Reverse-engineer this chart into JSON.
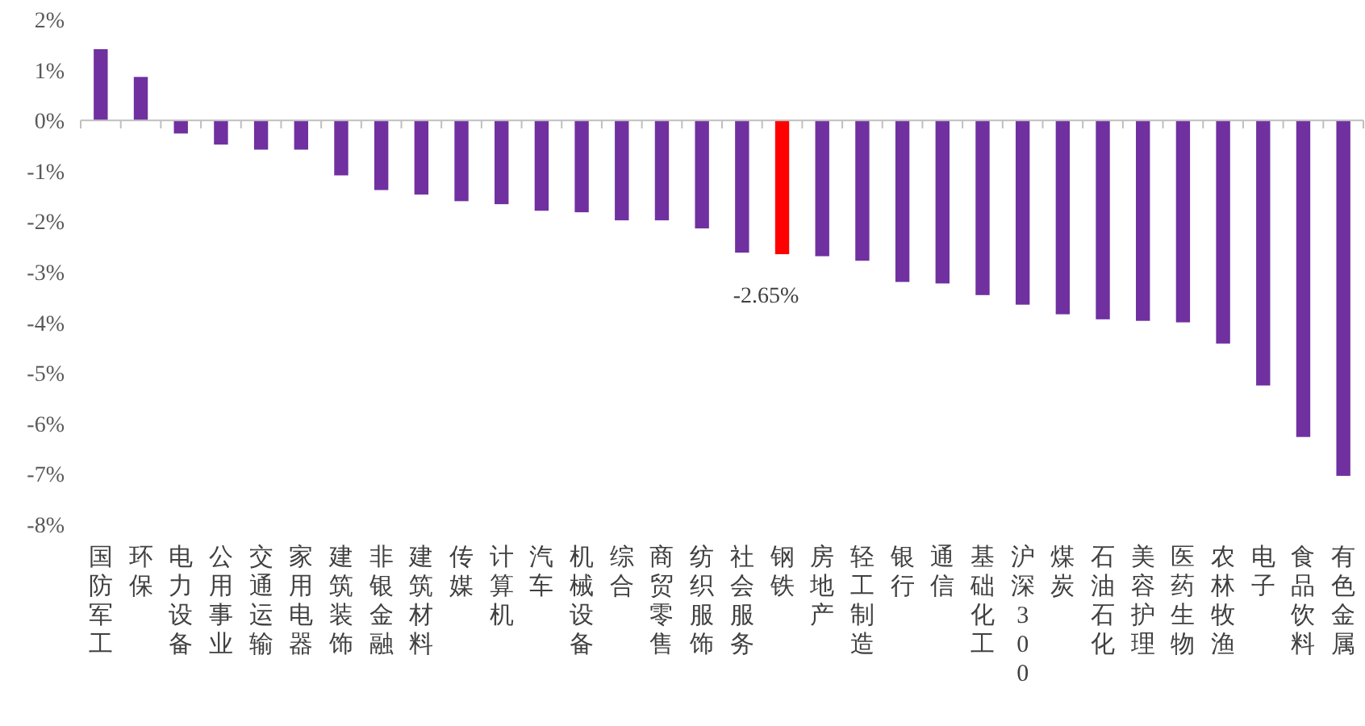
{
  "chart_data": {
    "type": "bar",
    "categories": [
      "国防军工",
      "环保",
      "电力设备",
      "公用事业",
      "交通运输",
      "家用电器",
      "建筑装饰",
      "非银金融",
      "建筑材料",
      "传媒",
      "计算机",
      "汽车",
      "机械设备",
      "综合",
      "商贸零售",
      "纺织服饰",
      "社会服务",
      "钢铁",
      "房地产",
      "轻工制造",
      "银行",
      "通信",
      "基础化工",
      "沪深300",
      "煤炭",
      "石油石化",
      "美容护理",
      "医药生物",
      "农林牧渔",
      "电子",
      "食品饮料",
      "有色金属"
    ],
    "values": [
      1.41,
      0.86,
      -0.26,
      -0.48,
      -0.58,
      -0.58,
      -1.09,
      -1.38,
      -1.47,
      -1.6,
      -1.66,
      -1.79,
      -1.82,
      -1.98,
      -1.98,
      -2.14,
      -2.62,
      -2.65,
      -2.69,
      -2.78,
      -3.2,
      -3.23,
      -3.46,
      -3.65,
      -3.84,
      -3.94,
      -3.97,
      -4.0,
      -4.42,
      -5.25,
      -6.27,
      -7.04
    ],
    "colors": [
      "#7030a0",
      "#7030a0",
      "#7030a0",
      "#7030a0",
      "#7030a0",
      "#7030a0",
      "#7030a0",
      "#7030a0",
      "#7030a0",
      "#7030a0",
      "#7030a0",
      "#7030a0",
      "#7030a0",
      "#7030a0",
      "#7030a0",
      "#7030a0",
      "#7030a0",
      "#ff0000",
      "#7030a0",
      "#7030a0",
      "#7030a0",
      "#7030a0",
      "#7030a0",
      "#7030a0",
      "#7030a0",
      "#7030a0",
      "#7030a0",
      "#7030a0",
      "#7030a0",
      "#7030a0",
      "#7030a0",
      "#7030a0"
    ],
    "value_labels": [
      null,
      null,
      null,
      null,
      null,
      null,
      null,
      null,
      null,
      null,
      null,
      null,
      null,
      null,
      null,
      null,
      null,
      "-2.65%",
      null,
      null,
      null,
      null,
      null,
      null,
      null,
      null,
      null,
      null,
      null,
      null,
      null,
      null
    ],
    "ylim": [
      -8,
      2
    ],
    "yticks": [
      {
        "value": 2,
        "label": "2%"
      },
      {
        "value": 1,
        "label": "1%"
      },
      {
        "value": 0,
        "label": "0%"
      },
      {
        "value": -1,
        "label": "-1%"
      },
      {
        "value": -2,
        "label": "-2%"
      },
      {
        "value": -3,
        "label": "-3%"
      },
      {
        "value": -4,
        "label": "-4%"
      },
      {
        "value": -5,
        "label": "-5%"
      },
      {
        "value": -6,
        "label": "-6%"
      },
      {
        "value": -7,
        "label": "-7%"
      },
      {
        "value": -8,
        "label": "-8%"
      }
    ],
    "legend": false
  }
}
